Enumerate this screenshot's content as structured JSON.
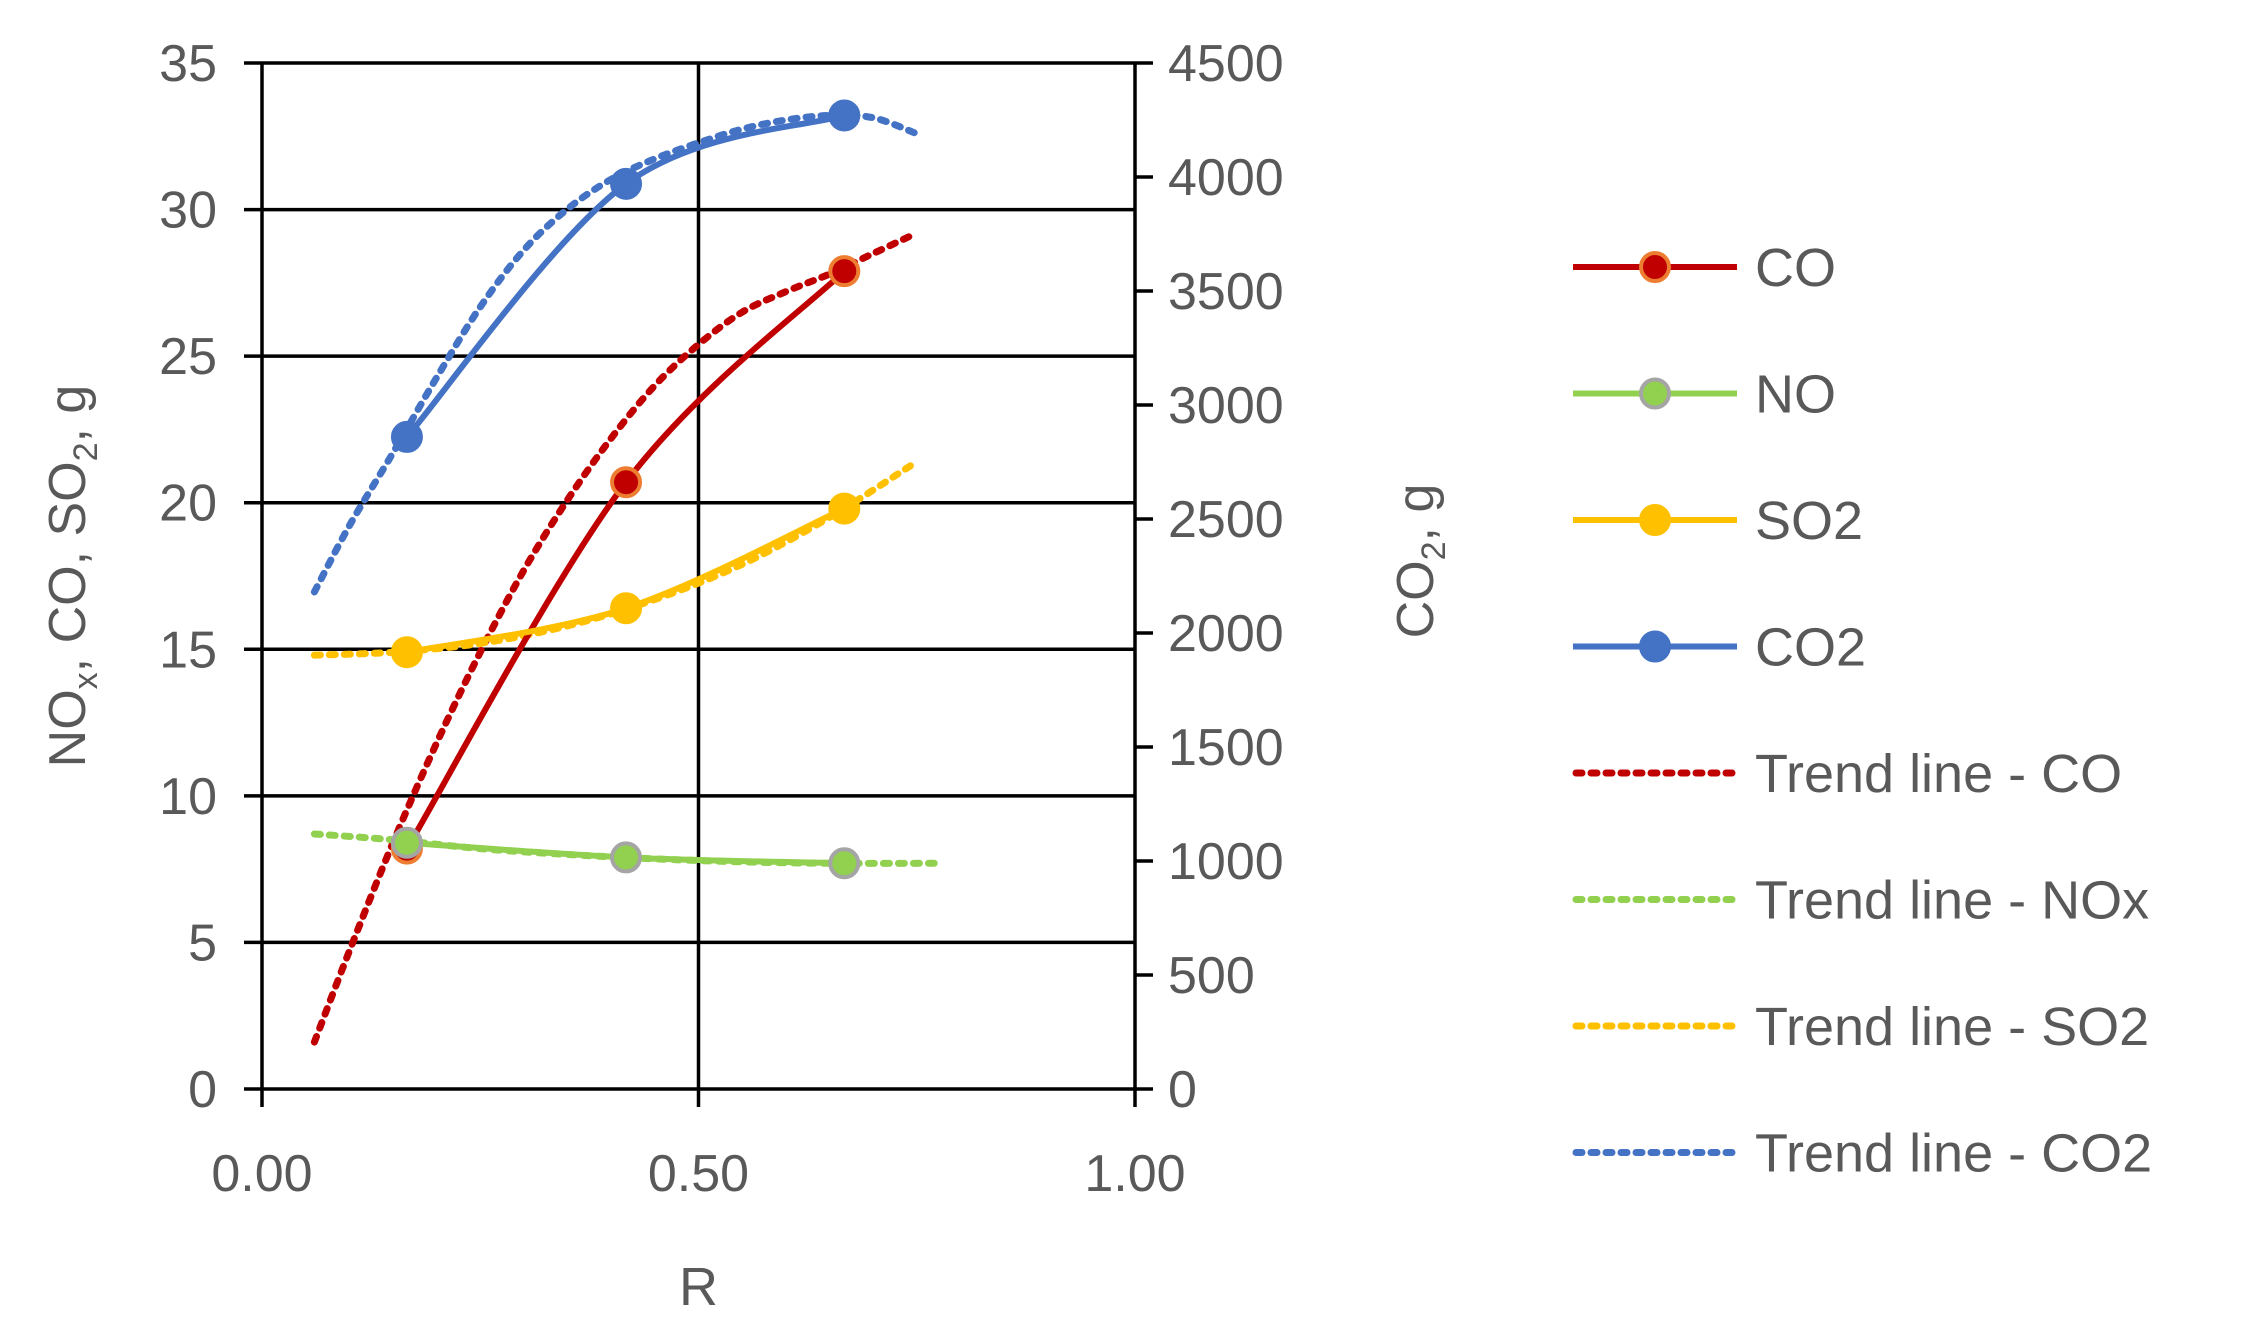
{
  "chart_data": {
    "type": "line",
    "xlabel": "R",
    "ylabel_left": {
      "main": "NO",
      "sub1": "x",
      "mid1": ", CO, SO",
      "sub2": "2",
      "end": ", g"
    },
    "ylabel_right": {
      "main": "CO",
      "sub": "2",
      "end": ", g"
    },
    "xlim": [
      0,
      1
    ],
    "ylim_left": [
      0,
      35
    ],
    "ylim_right": [
      0,
      4500
    ],
    "x_ticks": [
      "0.00",
      "0.50",
      "1.00"
    ],
    "x_tick_values": [
      0,
      0.5,
      1
    ],
    "y_left_ticks": [
      0,
      5,
      10,
      15,
      20,
      25,
      30,
      35
    ],
    "y_right_ticks": [
      0,
      500,
      1000,
      1500,
      2000,
      2500,
      3000,
      3500,
      4000,
      4500
    ],
    "grid": "on",
    "legend_position": "right",
    "series": [
      {
        "name": "CO",
        "axis": "left",
        "color": "#C00000",
        "marker_fill": "#C00000",
        "marker_edge": "#ED7D31",
        "x": [
          0.166,
          0.417,
          0.667
        ],
        "values": [
          8.2,
          20.7,
          27.9
        ]
      },
      {
        "name": "NO",
        "axis": "left",
        "color": "#92D050",
        "marker_fill": "#92D050",
        "marker_edge": "#A5A5A5",
        "x": [
          0.166,
          0.417,
          0.667
        ],
        "values": [
          8.4,
          7.9,
          7.7
        ]
      },
      {
        "name": "SO2",
        "axis": "left",
        "color": "#FFC000",
        "marker_fill": "#FFC000",
        "marker_edge": "#FFC000",
        "x": [
          0.166,
          0.417,
          0.667
        ],
        "values": [
          14.9,
          16.4,
          19.8
        ]
      },
      {
        "name": "CO2",
        "axis": "right",
        "color": "#4472C4",
        "marker_fill": "#4472C4",
        "marker_edge": "#4472C4",
        "x": [
          0.166,
          0.417,
          0.667
        ],
        "values": [
          2860,
          3970,
          4270
        ]
      }
    ],
    "trendlines": [
      {
        "name": "Trend line - CO",
        "axis": "left",
        "color": "#C00000",
        "x": [
          0.06,
          0.1,
          0.15,
          0.2,
          0.25,
          0.3,
          0.35,
          0.4,
          0.45,
          0.5,
          0.55,
          0.6,
          0.65,
          0.7,
          0.75
        ],
        "values": [
          1.6,
          4.7,
          8.4,
          11.8,
          14.9,
          17.7,
          20.1,
          22.2,
          24.0,
          25.4,
          26.5,
          27.2,
          27.8,
          28.5,
          29.2
        ]
      },
      {
        "name": "Trend line - NOx",
        "axis": "left",
        "color": "#92D050",
        "x": [
          0.06,
          0.15,
          0.25,
          0.35,
          0.45,
          0.55,
          0.65,
          0.77
        ],
        "values": [
          8.7,
          8.5,
          8.2,
          8.0,
          7.85,
          7.75,
          7.7,
          7.7
        ]
      },
      {
        "name": "Trend line - SO2",
        "axis": "left",
        "color": "#FFC000",
        "x": [
          0.06,
          0.15,
          0.25,
          0.35,
          0.45,
          0.55,
          0.65,
          0.75
        ],
        "values": [
          14.8,
          14.9,
          15.2,
          15.8,
          16.7,
          17.9,
          19.5,
          21.4
        ]
      },
      {
        "name": "Trend line - CO2",
        "axis": "right",
        "color": "#4472C4",
        "x": [
          0.06,
          0.1,
          0.15,
          0.2,
          0.25,
          0.3,
          0.35,
          0.4,
          0.45,
          0.5,
          0.55,
          0.6,
          0.65,
          0.7,
          0.75
        ],
        "values": [
          2180,
          2470,
          2790,
          3120,
          3430,
          3680,
          3860,
          3990,
          4080,
          4150,
          4210,
          4250,
          4270,
          4260,
          4190
        ]
      }
    ]
  }
}
